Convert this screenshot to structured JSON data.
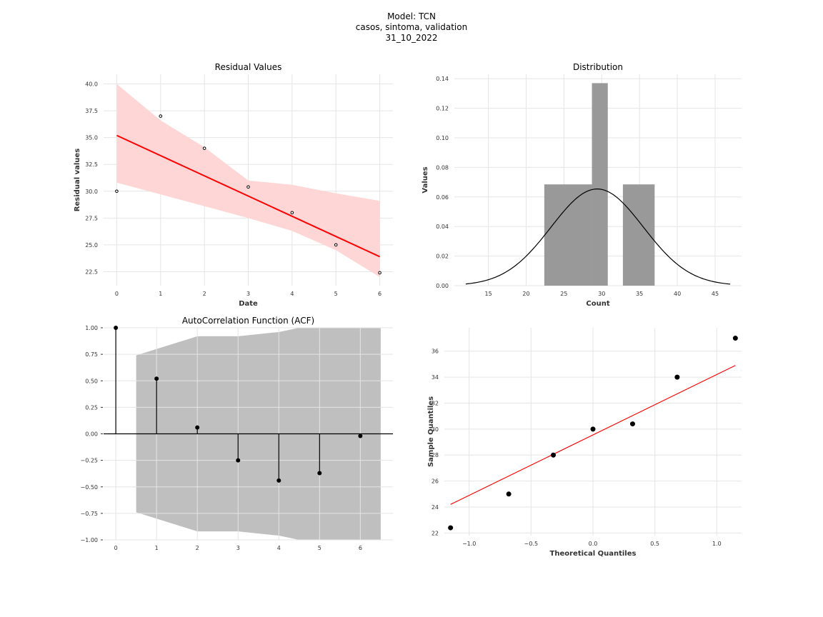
{
  "suptitle": [
    "Model: TCN",
    "casos, sintoma, validation",
    "31_10_2022"
  ],
  "chart_data": [
    {
      "type": "scatter",
      "title": "Residual Values",
      "xlabel": "Date",
      "ylabel": "Residual values",
      "x": [
        0,
        1,
        2,
        3,
        4,
        5,
        6
      ],
      "y": [
        30.0,
        37.0,
        34.0,
        30.4,
        28.0,
        25.0,
        22.4
      ],
      "regression_line": {
        "x": [
          0,
          6
        ],
        "y": [
          35.2,
          23.9
        ],
        "color": "#ff0000"
      },
      "confidence_band": {
        "x": [
          0,
          1,
          2,
          3,
          4,
          5,
          6
        ],
        "lower": [
          30.8,
          29.7,
          28.6,
          27.5,
          26.3,
          24.5,
          22.0
        ],
        "upper": [
          40.0,
          36.6,
          34.1,
          31.0,
          30.6,
          29.8,
          29.1
        ],
        "color": "#ffd6d6"
      },
      "xticks": [
        0,
        1,
        2,
        3,
        4,
        5,
        6
      ],
      "yticks": [
        22.5,
        25.0,
        27.5,
        30.0,
        32.5,
        35.0,
        37.5,
        40.0
      ],
      "xlim": [
        -0.3,
        6.3
      ],
      "ylim": [
        21.2,
        40.9
      ],
      "grid": true
    },
    {
      "type": "bar",
      "title": "Distribution",
      "xlabel": "Count",
      "ylabel": "Values",
      "bins": [
        {
          "x0": 22.4,
          "x1": 28.7,
          "value": 0.0685
        },
        {
          "x0": 28.7,
          "x1": 30.8,
          "value": 0.137
        },
        {
          "x0": 32.8,
          "x1": 37.0,
          "value": 0.0685
        }
      ],
      "bar_color": "#999999",
      "density_curve": {
        "mean": 29.4,
        "sd": 6.1,
        "range": [
          12.0,
          47.0
        ],
        "color": "#000000"
      },
      "xticks": [
        15,
        20,
        25,
        30,
        35,
        40,
        45
      ],
      "yticks": [
        0.0,
        0.02,
        0.04,
        0.06,
        0.08,
        0.1,
        0.12,
        0.14
      ],
      "xlim": [
        10.5,
        48.5
      ],
      "ylim": [
        0,
        0.143
      ],
      "grid": true
    },
    {
      "type": "line",
      "title": "AutoCorrelation Function (ACF)",
      "lags": [
        0,
        1,
        2,
        3,
        4,
        5,
        6
      ],
      "values": [
        1.0,
        0.52,
        0.06,
        -0.25,
        -0.44,
        -0.37,
        -0.02
      ],
      "confidence_band": {
        "x": [
          0.5,
          2,
          3,
          4,
          4.5,
          6.5
        ],
        "upper": [
          0.74,
          0.92,
          0.92,
          0.96,
          1.01,
          1.01
        ],
        "color": "#bfbfbf"
      },
      "xticks": [
        0,
        1,
        2,
        3,
        4,
        5,
        6
      ],
      "yticks": [
        -1.0,
        -0.75,
        -0.5,
        -0.25,
        0.0,
        0.25,
        0.5,
        0.75,
        1.0
      ],
      "xlim": [
        -0.3,
        6.8
      ],
      "ylim": [
        -1.0,
        1.0
      ],
      "grid": true
    },
    {
      "type": "scatter",
      "title": "",
      "xlabel": "Theoretical Quantiles",
      "ylabel": "Sample Quantiles",
      "x": [
        -1.15,
        -0.68,
        -0.32,
        0.0,
        0.32,
        0.68,
        1.15
      ],
      "y": [
        22.4,
        25.0,
        28.0,
        30.0,
        30.4,
        34.0,
        37.0
      ],
      "reference_line": {
        "x": [
          -1.15,
          1.15
        ],
        "y": [
          24.2,
          34.9
        ],
        "color": "#ff0000"
      },
      "xticks": [
        -1.0,
        -0.5,
        0.0,
        0.5,
        1.0
      ],
      "yticks": [
        22,
        24,
        26,
        28,
        30,
        32,
        34,
        36
      ],
      "xlim": [
        -1.2,
        1.2
      ],
      "ylim": [
        21.8,
        37.8
      ],
      "grid": true
    }
  ]
}
